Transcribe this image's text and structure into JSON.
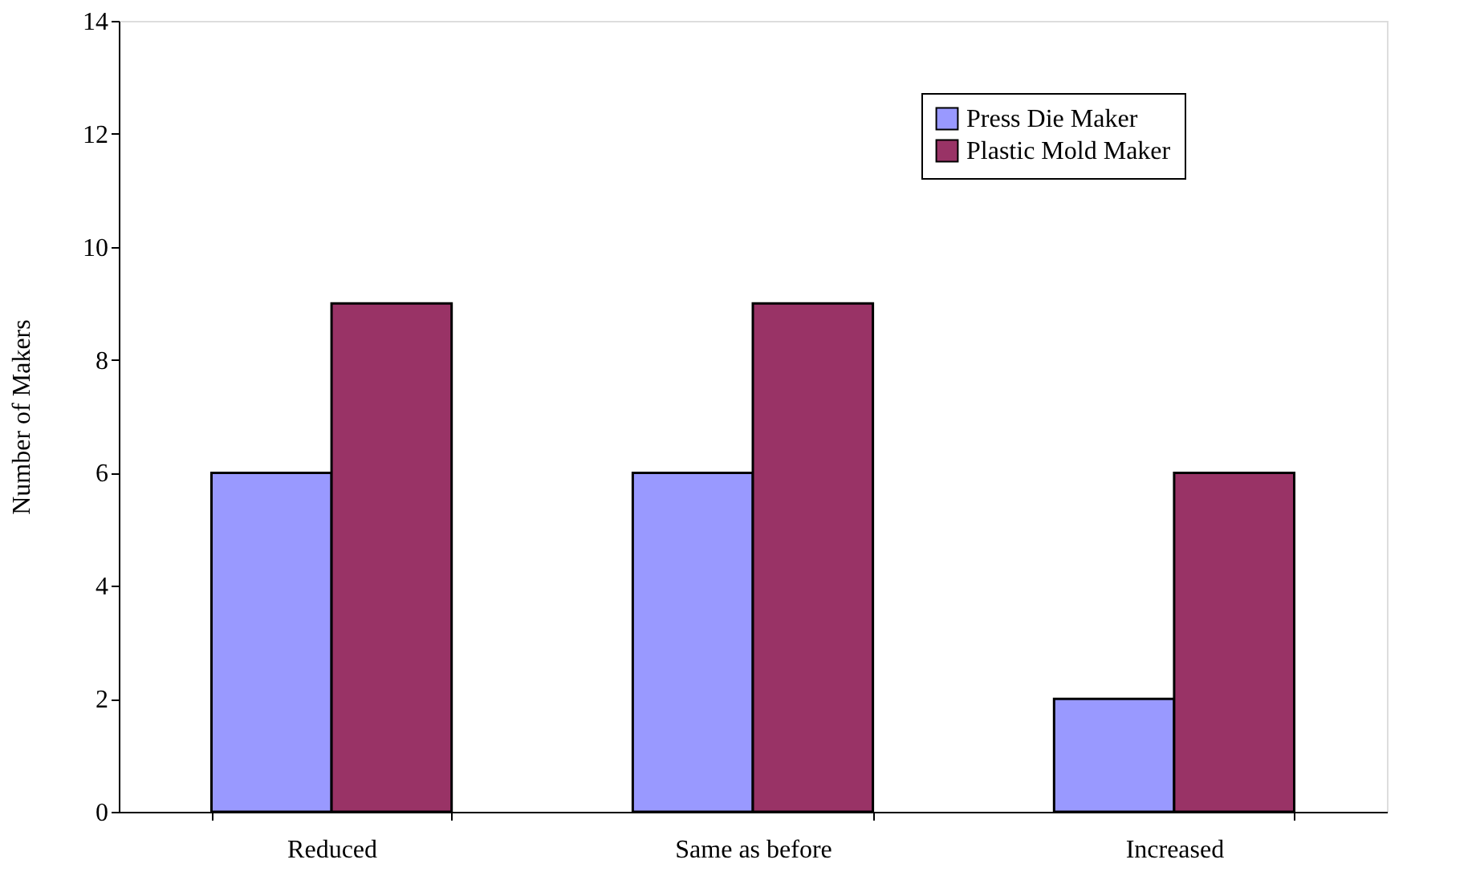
{
  "chart_data": {
    "type": "bar",
    "ylabel": "Number of Makers",
    "categories": [
      "Reduced",
      "Same as before",
      "Increased"
    ],
    "series": [
      {
        "name": "Press Die Maker",
        "color": "#9999ff",
        "values": [
          6,
          6,
          2
        ]
      },
      {
        "name": "Plastic Mold Maker",
        "color": "#993366",
        "values": [
          9,
          9,
          6
        ]
      }
    ],
    "ylim": [
      0,
      14
    ],
    "yticks": [
      0,
      2,
      4,
      6,
      8,
      10,
      12,
      14
    ],
    "legend": "top right"
  }
}
